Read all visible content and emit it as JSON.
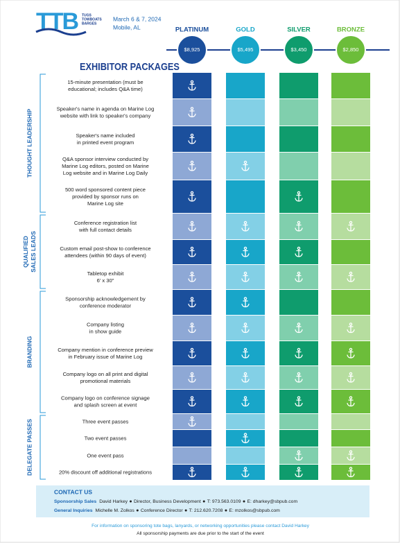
{
  "header": {
    "logo": "TTB",
    "logo_sub": [
      "TUGS",
      "TOWBOATS",
      "BARGES"
    ],
    "date": "March 6 & 7, 2024",
    "location": "Mobile, AL"
  },
  "tiers": [
    {
      "name": "PLATINUM",
      "price": "$8,925",
      "color": "#1b4f9c",
      "light": "#8ea8d5"
    },
    {
      "name": "GOLD",
      "price": "$5,495",
      "color": "#18a6c9",
      "light": "#83d0e6"
    },
    {
      "name": "SILVER",
      "price": "$3,450",
      "color": "#0f9c6d",
      "light": "#80cfad"
    },
    {
      "name": "BRONZE",
      "price": "$2,850",
      "color": "#6cbd3a",
      "light": "#b6dd9f"
    }
  ],
  "title": "EXHIBITOR PACKAGES",
  "groups": [
    {
      "label": [
        "THOUGHT LEADERSHIP"
      ],
      "rows": [
        {
          "text": [
            "15-minute presentation (must be",
            "educational; includes Q&A time)"
          ],
          "included": [
            true,
            false,
            false,
            false
          ]
        },
        {
          "text": [
            "Speaker's name in agenda on Marine Log",
            "website with link to speaker's company"
          ],
          "included": [
            true,
            false,
            false,
            false
          ]
        },
        {
          "text": [
            "Speaker's name included",
            "in printed event program"
          ],
          "included": [
            true,
            false,
            false,
            false
          ]
        },
        {
          "text": [
            "Q&A sponsor interview conducted by",
            "Marine Log editors, posted on Marine",
            "Log website and in Marine Log Daily"
          ],
          "included": [
            true,
            true,
            false,
            false
          ]
        },
        {
          "text": [
            "500 word sponsored content piece",
            "provided by sponsor runs on",
            "Marine Log site"
          ],
          "included": [
            true,
            false,
            true,
            false
          ]
        }
      ]
    },
    {
      "label": [
        "QUALIFIED",
        "SALES LEADS"
      ],
      "rows": [
        {
          "text": [
            "Conference registration list",
            "with full contact details"
          ],
          "included": [
            true,
            true,
            true,
            true
          ]
        },
        {
          "text": [
            "Custom email post-show to conference",
            "attendees (within 90 days of event)"
          ],
          "included": [
            true,
            true,
            true,
            false
          ]
        },
        {
          "text": [
            "Tabletop exhibit",
            "6' x 30\""
          ],
          "included": [
            true,
            true,
            true,
            true
          ]
        }
      ]
    },
    {
      "label": [
        "BRANDING"
      ],
      "rows": [
        {
          "text": [
            "Sponsorship acknowledgement by",
            "conference moderator"
          ],
          "included": [
            true,
            true,
            false,
            false
          ]
        },
        {
          "text": [
            "Company listing",
            "in show guide"
          ],
          "included": [
            true,
            true,
            true,
            true
          ]
        },
        {
          "text": [
            "Company mention in conference preview",
            "in February issue of Marine Log"
          ],
          "included": [
            true,
            true,
            true,
            true
          ]
        },
        {
          "text": [
            "Company logo on all print and digital",
            "promotional materials"
          ],
          "included": [
            true,
            true,
            true,
            true
          ]
        },
        {
          "text": [
            "Company logo on conference signage",
            "and splash screen at event"
          ],
          "included": [
            true,
            true,
            true,
            true
          ]
        }
      ]
    },
    {
      "label": [
        "DELEGATE PASSES"
      ],
      "rows": [
        {
          "text": [
            "Three event passes"
          ],
          "included": [
            true,
            false,
            false,
            false
          ]
        },
        {
          "text": [
            "Two event passes"
          ],
          "included": [
            false,
            true,
            false,
            false
          ]
        },
        {
          "text": [
            "One event pass"
          ],
          "included": [
            false,
            false,
            true,
            true
          ]
        },
        {
          "text": [
            "20% discount off additional registrations"
          ],
          "included": [
            true,
            true,
            true,
            true
          ]
        }
      ]
    }
  ],
  "contact": {
    "title": "CONTACT US",
    "lines": [
      {
        "label": "Sponsorship Sales",
        "parts": [
          "David Harkey",
          "Director, Business Development",
          "T: 973.563.0109",
          "E: dharkey@sbpub.com"
        ]
      },
      {
        "label": "General Inquiries",
        "parts": [
          "Michelle M. Zolkos",
          "Conference Director",
          "T: 212.620.7208",
          "E: mzolkos@sbpub.com"
        ]
      }
    ]
  },
  "footer": [
    "For information on sponsoring tote bags, lanyards, or networking opportunities please contact David Harkey",
    "All sponsorship payments are due prior to the start of the event"
  ]
}
